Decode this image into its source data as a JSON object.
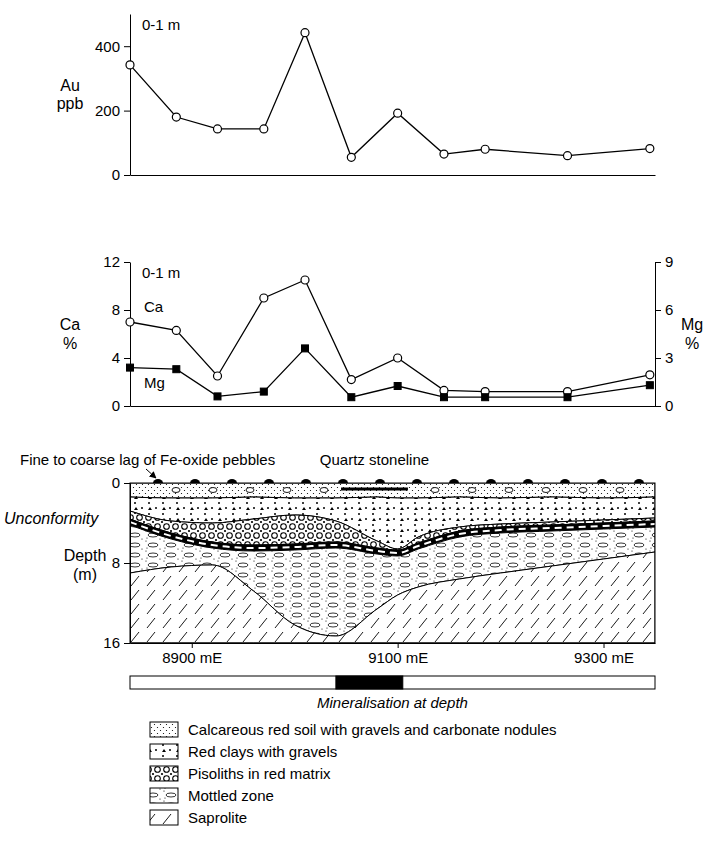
{
  "chart_data": [
    {
      "type": "line",
      "annotation": "0-1 m",
      "y_label": "Au ppb",
      "x": [
        8840,
        8885,
        8925,
        8970,
        9010,
        9055,
        9100,
        9145,
        9185,
        9265,
        9345
      ],
      "values": [
        342,
        180,
        143,
        143,
        442,
        55,
        192,
        65,
        80,
        60,
        82
      ],
      "color": "#000000",
      "marker": "circle",
      "xlim": [
        8840,
        9350
      ],
      "ylim": [
        0,
        500
      ],
      "yticks": [
        0,
        200,
        400
      ],
      "tick_labels": "y"
    },
    {
      "type": "line",
      "annotation": "0-1 m",
      "y_label": "Ca %",
      "y2_label": "Mg %",
      "x": [
        8840,
        8885,
        8925,
        8970,
        9010,
        9055,
        9100,
        9145,
        9185,
        9265,
        9345
      ],
      "series": [
        {
          "name": "Ca",
          "color": "#000000",
          "marker": "circle",
          "values": [
            7.0,
            6.3,
            2.5,
            9.0,
            10.5,
            2.2,
            4.0,
            1.3,
            1.2,
            1.2,
            2.6
          ]
        },
        {
          "name": "Mg",
          "color": "#000000",
          "marker": "square",
          "axis": "y2",
          "values": [
            2.4,
            2.3,
            0.6,
            0.9,
            3.6,
            0.55,
            1.25,
            0.55,
            0.55,
            0.55,
            1.3
          ]
        }
      ],
      "xlim": [
        8840,
        9350
      ],
      "ylim": [
        0,
        12
      ],
      "yticks": [
        0,
        4,
        8,
        12
      ],
      "y2lim": [
        0,
        9
      ],
      "y2ticks": [
        0,
        3,
        6,
        9
      ],
      "tick_labels": "y"
    }
  ],
  "section": {
    "lag_label": "Fine to coarse lag of Fe-oxide pebbles",
    "stoneline": {
      "label": "Quartz stoneline",
      "x": [
        9045,
        9110
      ]
    },
    "unconformity_label": "Unconformity",
    "y_label": "Depth (m)",
    "xlim": [
      8840,
      9350
    ],
    "ylim": [
      0,
      16
    ],
    "yticks": [
      0,
      8,
      16
    ],
    "xticks": [
      {
        "value": 8900,
        "label": "8900 mE"
      },
      {
        "value": 9100,
        "label": "9100 mE"
      },
      {
        "value": 9300,
        "label": "9300 mE"
      }
    ],
    "profile": {
      "x": [
        8840,
        8880,
        8920,
        8960,
        9000,
        9040,
        9080,
        9100,
        9120,
        9160,
        9200,
        9250,
        9300,
        9350
      ],
      "soil_base": [
        1.4,
        1.5,
        1.5,
        1.4,
        1.5,
        1.5,
        1.4,
        1.5,
        1.5,
        1.4,
        1.5,
        1.4,
        1.5,
        1.4
      ],
      "pisolith_top": [
        2.8,
        3.8,
        4.0,
        3.6,
        3.2,
        3.8,
        5.8,
        6.6,
        5.4,
        4.4,
        4.1,
        3.9,
        3.7,
        3.5
      ],
      "unconformity_top": [
        3.6,
        5.0,
        5.9,
        6.2,
        6.1,
        5.9,
        6.5,
        6.7,
        6.0,
        4.8,
        4.4,
        4.2,
        4.0,
        3.8
      ],
      "unconformity_base": [
        4.2,
        5.6,
        6.5,
        6.8,
        6.7,
        6.5,
        7.1,
        7.3,
        6.6,
        5.4,
        5.0,
        4.8,
        4.6,
        4.4
      ],
      "saprolite_top": [
        9.0,
        8.4,
        8.2,
        10.8,
        14.2,
        15.3,
        12.6,
        11.2,
        10.4,
        9.6,
        9.0,
        8.3,
        7.6,
        6.9
      ]
    },
    "mineralisation": {
      "label": "Mineralisation at depth",
      "x": [
        9040,
        9105
      ]
    },
    "legend_items": [
      "Calcareous red soil with gravels and carbonate nodules",
      "Red clays with gravels",
      "Pisoliths in red matrix",
      "Mottled zone",
      "Saprolite"
    ]
  }
}
